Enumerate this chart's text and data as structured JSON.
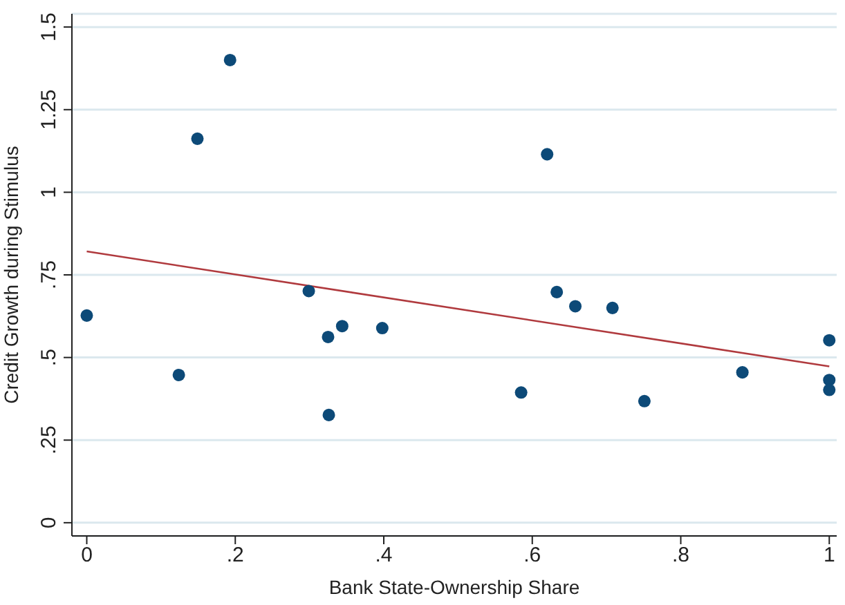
{
  "chart_data": {
    "type": "scatter",
    "xlabel": "Bank State-Ownership Share",
    "ylabel": "Credit Growth during Stimulus",
    "xlim": [
      -0.02,
      1.01
    ],
    "ylim": [
      -0.04,
      1.54
    ],
    "xticks": [
      {
        "value": 0,
        "label": "0"
      },
      {
        "value": 0.2,
        "label": ".2"
      },
      {
        "value": 0.4,
        "label": ".4"
      },
      {
        "value": 0.6,
        "label": ".6"
      },
      {
        "value": 0.8,
        "label": ".8"
      },
      {
        "value": 1,
        "label": "1"
      }
    ],
    "yticks": [
      {
        "value": 0,
        "label": "0"
      },
      {
        "value": 0.25,
        "label": ".25"
      },
      {
        "value": 0.5,
        "label": ".5"
      },
      {
        "value": 0.75,
        "label": ".75"
      },
      {
        "value": 1,
        "label": "1"
      },
      {
        "value": 1.25,
        "label": "1.25"
      },
      {
        "value": 1.5,
        "label": "1.5"
      }
    ],
    "grid": "y",
    "marker": "circle",
    "series": [
      {
        "color": "#0d4a78",
        "x": [
          0,
          0.124,
          0.149,
          0.193,
          0.299,
          0.325,
          0.344,
          0.326,
          0.398,
          0.585,
          0.62,
          0.633,
          0.658,
          0.708,
          0.751,
          0.883,
          1,
          1,
          1
        ],
        "values": [
          0.627,
          0.447,
          1.162,
          1.4,
          0.701,
          0.562,
          0.595,
          0.326,
          0.589,
          0.394,
          1.115,
          0.698,
          0.655,
          0.65,
          0.368,
          0.455,
          0.552,
          0.432,
          0.402
        ]
      },
      {
        "type": "line",
        "color": "#b03a3e",
        "x": [
          0,
          1
        ],
        "values": [
          0.821,
          0.473
        ],
        "marker": "none",
        "line_style": "solid"
      }
    ]
  }
}
